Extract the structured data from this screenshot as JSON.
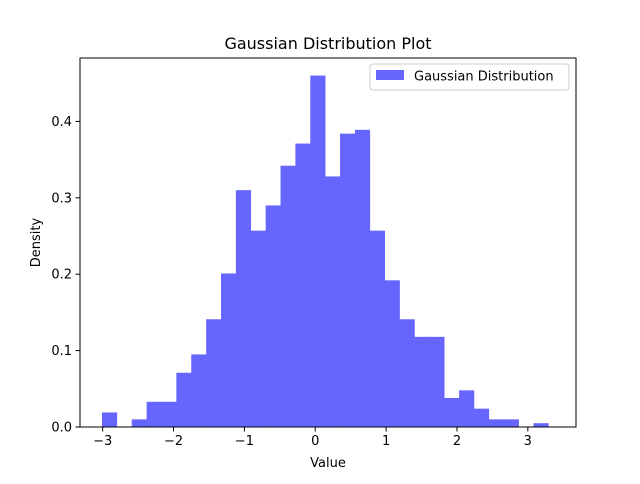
{
  "chart_data": {
    "type": "bar",
    "title": "Gaussian Distribution Plot",
    "xlabel": "Value",
    "ylabel": "Density",
    "xlim": [
      -3.32,
      3.68
    ],
    "ylim": [
      0,
      0.483
    ],
    "xticks": [
      -3,
      -2,
      -1,
      0,
      1,
      2,
      3
    ],
    "xtick_labels": [
      "−3",
      "−2",
      "−1",
      "0",
      "1",
      "2",
      "3"
    ],
    "yticks": [
      0.0,
      0.1,
      0.2,
      0.3,
      0.4
    ],
    "ytick_labels": [
      "0.0",
      "0.1",
      "0.2",
      "0.3",
      "0.4"
    ],
    "grid": false,
    "legend_position": "top-right",
    "bar_color": "#6666ff",
    "bin_edges": [
      -3.01,
      -2.8,
      -2.59,
      -2.38,
      -2.17,
      -1.96,
      -1.75,
      -1.54,
      -1.33,
      -1.12,
      -0.91,
      -0.7,
      -0.49,
      -0.28,
      -0.07,
      0.14,
      0.35,
      0.56,
      0.77,
      0.98,
      1.19,
      1.4,
      1.61,
      1.82,
      2.03,
      2.24,
      2.45,
      2.66,
      2.87,
      3.08,
      3.29
    ],
    "values": [
      0.019,
      0.0,
      0.01,
      0.033,
      0.033,
      0.071,
      0.095,
      0.141,
      0.201,
      0.31,
      0.257,
      0.29,
      0.342,
      0.371,
      0.46,
      0.328,
      0.384,
      0.389,
      0.257,
      0.192,
      0.141,
      0.118,
      0.118,
      0.038,
      0.048,
      0.024,
      0.01,
      0.01,
      0.0,
      0.005
    ],
    "series": [
      {
        "name": "Gaussian Distribution"
      }
    ]
  }
}
